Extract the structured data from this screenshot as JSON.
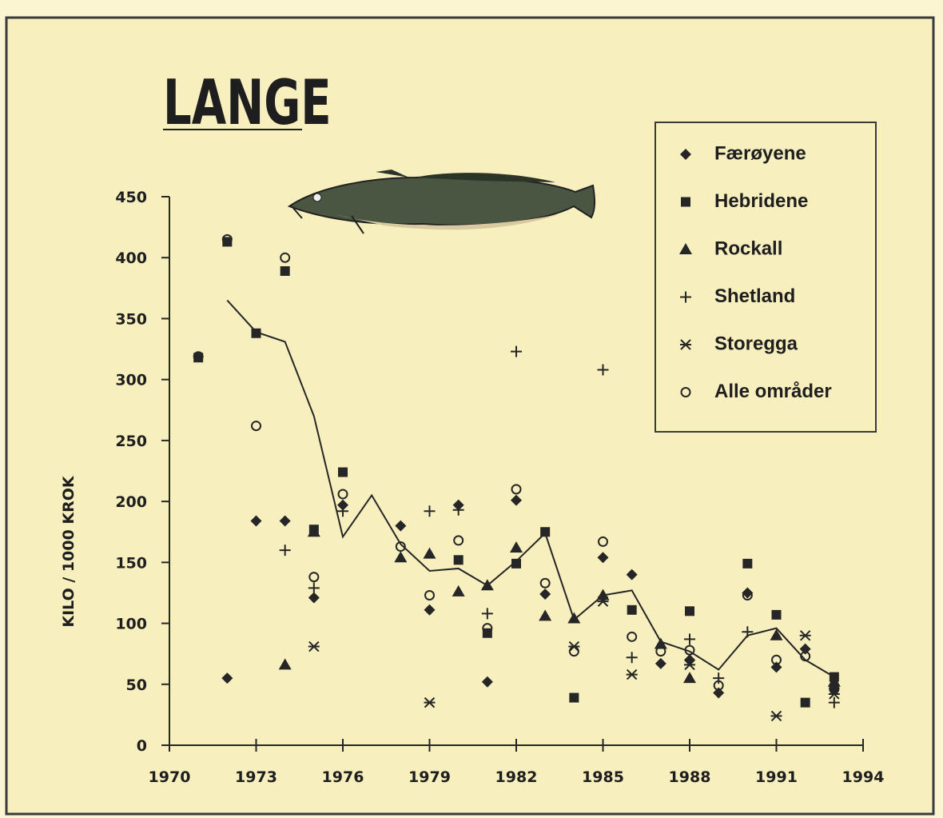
{
  "chart_data": {
    "type": "scatter",
    "title": "LANGE",
    "y_label": "KILO / 1000 KROK",
    "xlim": [
      1970,
      1994
    ],
    "xticks": [
      1970,
      1973,
      1976,
      1979,
      1982,
      1985,
      1988,
      1991,
      1994
    ],
    "ylim": [
      0,
      450
    ],
    "yticks": [
      0,
      50,
      100,
      150,
      200,
      250,
      300,
      350,
      400,
      450
    ],
    "grid": false,
    "legend": "upper right",
    "color": "#262626",
    "series": [
      {
        "name": "Færøyene",
        "marker": "diamond",
        "x": [
          1972,
          1973,
          1974,
          1975,
          1976,
          1978,
          1979,
          1980,
          1981,
          1982,
          1983,
          1985,
          1986,
          1987,
          1988,
          1989,
          1990,
          1991,
          1992,
          1993
        ],
        "values": [
          55,
          184,
          184,
          121,
          197,
          180,
          111,
          197,
          52,
          201,
          124,
          154,
          140,
          67,
          70,
          43,
          125,
          64,
          79,
          47
        ]
      },
      {
        "name": "Hebridene",
        "marker": "square",
        "x": [
          1971,
          1972,
          1973,
          1974,
          1975,
          1976,
          1980,
          1981,
          1982,
          1983,
          1984,
          1986,
          1988,
          1990,
          1991,
          1992,
          1993
        ],
        "values": [
          318,
          413,
          338,
          389,
          177,
          224,
          152,
          92,
          149,
          175,
          39,
          111,
          110,
          149,
          107,
          35,
          56
        ]
      },
      {
        "name": "Rockall",
        "marker": "triangle",
        "x": [
          1974,
          1975,
          1978,
          1979,
          1980,
          1981,
          1982,
          1983,
          1984,
          1985,
          1987,
          1988,
          1991,
          1993
        ],
        "values": [
          66,
          175,
          154,
          157,
          126,
          131,
          162,
          106,
          104,
          123,
          83,
          55,
          90,
          52
        ]
      },
      {
        "name": "Shetland",
        "marker": "plus",
        "x": [
          1974,
          1975,
          1976,
          1979,
          1980,
          1981,
          1982,
          1985,
          1986,
          1988,
          1989,
          1990,
          1993
        ],
        "values": [
          160,
          129,
          192,
          192,
          193,
          108,
          323,
          308,
          72,
          87,
          55,
          93,
          35
        ]
      },
      {
        "name": "Storegga",
        "marker": "asterisk",
        "x": [
          1975,
          1979,
          1984,
          1985,
          1986,
          1988,
          1991,
          1992,
          1993
        ],
        "values": [
          81,
          35,
          81,
          118,
          58,
          66,
          24,
          90,
          42
        ]
      },
      {
        "name": "Alle områder",
        "marker": "circle",
        "x": [
          1971,
          1972,
          1973,
          1974,
          1975,
          1976,
          1978,
          1979,
          1980,
          1981,
          1982,
          1983,
          1984,
          1985,
          1986,
          1987,
          1988,
          1989,
          1990,
          1991,
          1992,
          1993
        ],
        "values": [
          319,
          415,
          262,
          400,
          138,
          206,
          163,
          123,
          168,
          96,
          210,
          133,
          77,
          167,
          89,
          77,
          78,
          49,
          123,
          70,
          73,
          46
        ]
      }
    ],
    "line": {
      "x": [
        1972,
        1973,
        1974,
        1975,
        1976,
        1977,
        1978,
        1979,
        1980,
        1981,
        1982,
        1983,
        1984,
        1985,
        1986,
        1987,
        1988,
        1989,
        1990,
        1991,
        1992,
        1993
      ],
      "values": [
        365,
        339,
        331,
        270,
        171,
        205,
        165,
        143,
        145,
        131,
        151,
        174,
        103,
        123,
        127,
        85,
        77,
        62,
        90,
        96,
        70,
        56
      ]
    }
  }
}
